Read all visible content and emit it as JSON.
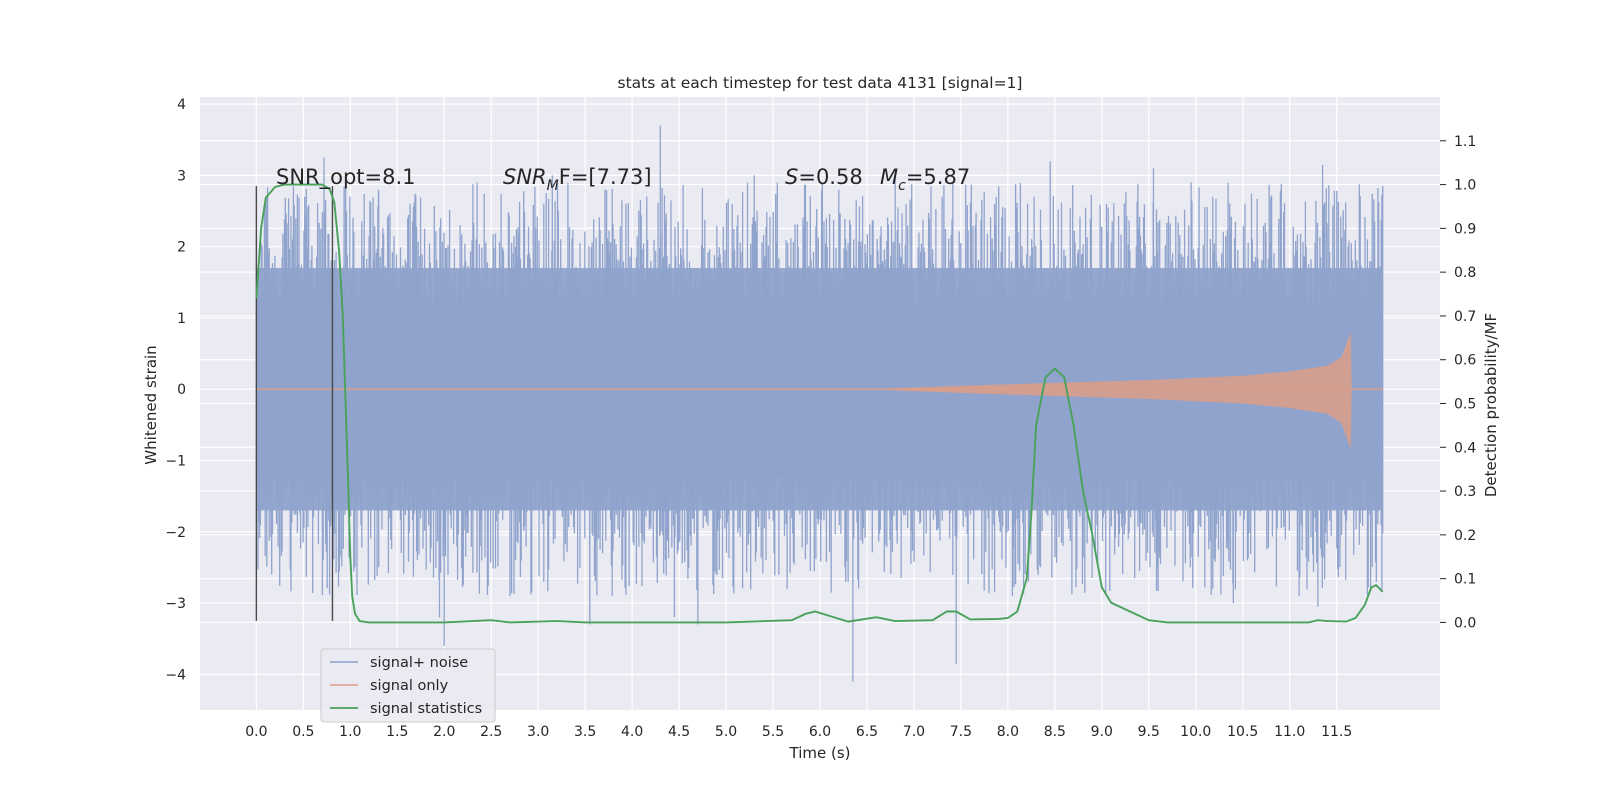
{
  "chart_data": {
    "type": "line",
    "title": "stats at each timestep for test data 4131 [signal=1]",
    "xlabel": "Time (s)",
    "ylabel_left": "Whitened strain",
    "ylabel_right": "Detection probability/MF",
    "xlim": [
      -0.6,
      12.6
    ],
    "ylim_left": [
      -4.5,
      4.1
    ],
    "ylim_right": [
      -0.2,
      1.2
    ],
    "x_ticks": [
      "0.0",
      "0.5",
      "1.0",
      "1.5",
      "2.0",
      "2.5",
      "3.0",
      "3.5",
      "4.0",
      "4.5",
      "5.0",
      "5.5",
      "6.0",
      "6.5",
      "7.0",
      "7.5",
      "8.0",
      "8.5",
      "9.0",
      "9.5",
      "10.0",
      "10.5",
      "11.0",
      "11.5"
    ],
    "x_tick_values": [
      0,
      0.5,
      1,
      1.5,
      2,
      2.5,
      3,
      3.5,
      4,
      4.5,
      5,
      5.5,
      6,
      6.5,
      7,
      7.5,
      8,
      8.5,
      9,
      9.5,
      10,
      10.5,
      11,
      11.5
    ],
    "y_ticks_left": [
      "4",
      "3",
      "2",
      "1",
      "0",
      "−1",
      "−2",
      "−3",
      "−4"
    ],
    "y_tick_values_left": [
      4,
      3,
      2,
      1,
      0,
      -1,
      -2,
      -3,
      -4
    ],
    "y_ticks_right": [
      "1.1",
      "1.0",
      "0.9",
      "0.8",
      "0.7",
      "0.6",
      "0.5",
      "0.4",
      "0.3",
      "0.2",
      "0.1",
      "0.0"
    ],
    "y_tick_values_right": [
      1.1,
      1.0,
      0.9,
      0.8,
      0.7,
      0.6,
      0.5,
      0.4,
      0.3,
      0.2,
      0.1,
      0.0
    ],
    "grid": true,
    "legend_position": "lower-left",
    "annotations": {
      "snr_opt": "SNR_opt=8.1",
      "snr_mf_base": "SNR",
      "snr_mf_sub": "M",
      "snr_mf_rest": "F=[7.73]",
      "s_label": "S",
      "s_value": "=0.58",
      "mc_label": "M",
      "mc_sub": "c",
      "mc_value": "=5.87"
    },
    "vertical_markers": [
      0.0,
      0.81
    ],
    "series": [
      {
        "name": "signal+ noise",
        "color": "#8fa3cc",
        "axis": "left",
        "description_range": [
          0.0,
          11.99
        ],
        "band_approx": [
          -1.7,
          1.7
        ],
        "spikes": [
          {
            "x": 0.1,
            "y": 2.6
          },
          {
            "x": 0.42,
            "y": 2.4
          },
          {
            "x": 0.72,
            "y": 3.25
          },
          {
            "x": 0.95,
            "y": 2.9
          },
          {
            "x": 1.05,
            "y": -2.5
          },
          {
            "x": 1.3,
            "y": 2.8
          },
          {
            "x": 1.95,
            "y": -3.2
          },
          {
            "x": 2.0,
            "y": -3.6
          },
          {
            "x": 2.35,
            "y": 2.9
          },
          {
            "x": 2.7,
            "y": -2.9
          },
          {
            "x": 3.15,
            "y": 3.0
          },
          {
            "x": 3.55,
            "y": -3.3
          },
          {
            "x": 4.3,
            "y": 3.7
          },
          {
            "x": 4.45,
            "y": -3.2
          },
          {
            "x": 4.7,
            "y": -3.3
          },
          {
            "x": 5.3,
            "y": 3.0
          },
          {
            "x": 5.65,
            "y": -2.8
          },
          {
            "x": 6.2,
            "y": 2.8
          },
          {
            "x": 6.35,
            "y": -4.1
          },
          {
            "x": 6.8,
            "y": 3.0
          },
          {
            "x": 7.3,
            "y": 2.7
          },
          {
            "x": 7.45,
            "y": -3.85
          },
          {
            "x": 8.45,
            "y": 3.2
          },
          {
            "x": 9.05,
            "y": 2.6
          },
          {
            "x": 9.55,
            "y": 3.1
          },
          {
            "x": 9.95,
            "y": 2.9
          },
          {
            "x": 10.4,
            "y": -3.0
          },
          {
            "x": 11.1,
            "y": -2.9
          },
          {
            "x": 11.3,
            "y": -3.05
          },
          {
            "x": 11.35,
            "y": 3.15
          },
          {
            "x": 11.99,
            "y": 2.85
          }
        ]
      },
      {
        "name": "signal only",
        "color": "#dd9d87",
        "axis": "left",
        "envelope": [
          {
            "x": 0.0,
            "y": 0.0
          },
          {
            "x": 6.5,
            "y": 0.0
          },
          {
            "x": 7.5,
            "y": 0.05
          },
          {
            "x": 8.5,
            "y": 0.09
          },
          {
            "x": 9.5,
            "y": 0.13
          },
          {
            "x": 10.5,
            "y": 0.19
          },
          {
            "x": 11.0,
            "y": 0.25
          },
          {
            "x": 11.4,
            "y": 0.33
          },
          {
            "x": 11.55,
            "y": 0.45
          },
          {
            "x": 11.65,
            "y": 0.8
          },
          {
            "x": 11.66,
            "y": 0.0
          },
          {
            "x": 11.99,
            "y": 0.0
          }
        ]
      },
      {
        "name": "signal statistics",
        "color": "#4aa25a",
        "axis": "right",
        "points": [
          [
            0.0,
            0.74
          ],
          [
            0.05,
            0.9
          ],
          [
            0.1,
            0.97
          ],
          [
            0.2,
            0.995
          ],
          [
            0.3,
            1.0
          ],
          [
            0.5,
            1.0
          ],
          [
            0.7,
            1.0
          ],
          [
            0.78,
            0.99
          ],
          [
            0.83,
            0.96
          ],
          [
            0.88,
            0.85
          ],
          [
            0.92,
            0.7
          ],
          [
            0.95,
            0.5
          ],
          [
            0.98,
            0.3
          ],
          [
            1.0,
            0.15
          ],
          [
            1.02,
            0.06
          ],
          [
            1.05,
            0.02
          ],
          [
            1.1,
            0.003
          ],
          [
            1.2,
            0.0
          ],
          [
            2.0,
            0.0
          ],
          [
            2.5,
            0.005
          ],
          [
            2.7,
            0.0
          ],
          [
            3.2,
            0.003
          ],
          [
            3.5,
            0.0
          ],
          [
            4.0,
            0.0
          ],
          [
            4.5,
            0.0
          ],
          [
            5.0,
            0.0
          ],
          [
            5.7,
            0.005
          ],
          [
            5.85,
            0.02
          ],
          [
            5.95,
            0.025
          ],
          [
            6.1,
            0.015
          ],
          [
            6.3,
            0.002
          ],
          [
            6.6,
            0.012
          ],
          [
            6.8,
            0.003
          ],
          [
            7.2,
            0.005
          ],
          [
            7.35,
            0.025
          ],
          [
            7.45,
            0.025
          ],
          [
            7.6,
            0.007
          ],
          [
            7.9,
            0.008
          ],
          [
            8.0,
            0.01
          ],
          [
            8.1,
            0.025
          ],
          [
            8.2,
            0.1
          ],
          [
            8.25,
            0.25
          ],
          [
            8.3,
            0.45
          ],
          [
            8.4,
            0.56
          ],
          [
            8.5,
            0.58
          ],
          [
            8.6,
            0.56
          ],
          [
            8.7,
            0.45
          ],
          [
            8.8,
            0.3
          ],
          [
            8.9,
            0.2
          ],
          [
            9.0,
            0.08
          ],
          [
            9.1,
            0.045
          ],
          [
            9.3,
            0.025
          ],
          [
            9.5,
            0.005
          ],
          [
            9.7,
            0.0
          ],
          [
            11.2,
            0.0
          ],
          [
            11.3,
            0.005
          ],
          [
            11.4,
            0.003
          ],
          [
            11.6,
            0.002
          ],
          [
            11.7,
            0.01
          ],
          [
            11.8,
            0.04
          ],
          [
            11.87,
            0.08
          ],
          [
            11.92,
            0.085
          ],
          [
            11.99,
            0.07
          ]
        ]
      }
    ]
  }
}
